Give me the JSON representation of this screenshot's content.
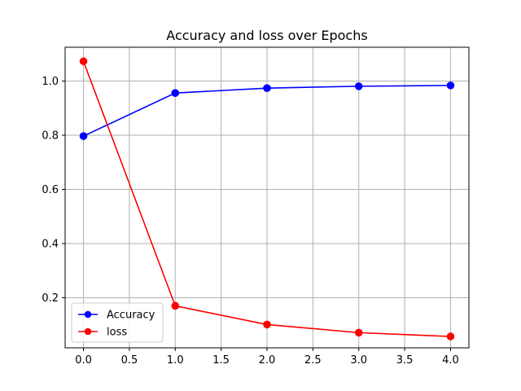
{
  "chart_data": {
    "type": "line",
    "title": "Accuracy and loss over Epochs",
    "xlabel": "",
    "ylabel": "",
    "x": [
      0,
      1,
      2,
      3,
      4
    ],
    "xlim": [
      -0.2,
      4.2
    ],
    "ylim": [
      0.015,
      1.125
    ],
    "xticks": [
      0.0,
      0.5,
      1.0,
      1.5,
      2.0,
      2.5,
      3.0,
      3.5,
      4.0
    ],
    "xtick_labels": [
      "0.0",
      "0.5",
      "1.0",
      "1.5",
      "2.0",
      "2.5",
      "3.0",
      "3.5",
      "4.0"
    ],
    "yticks": [
      0.2,
      0.4,
      0.6,
      0.8,
      1.0
    ],
    "ytick_labels": [
      "0.2",
      "0.4",
      "0.6",
      "0.8",
      "1.0"
    ],
    "grid": true,
    "legend_position": "lower-left",
    "series": [
      {
        "name": "Accuracy",
        "color": "#0000ff",
        "marker": "circle",
        "values": [
          0.797,
          0.956,
          0.974,
          0.981,
          0.984
        ]
      },
      {
        "name": "loss",
        "color": "#ff0000",
        "marker": "circle",
        "values": [
          1.073,
          0.17,
          0.101,
          0.071,
          0.057
        ]
      }
    ]
  }
}
